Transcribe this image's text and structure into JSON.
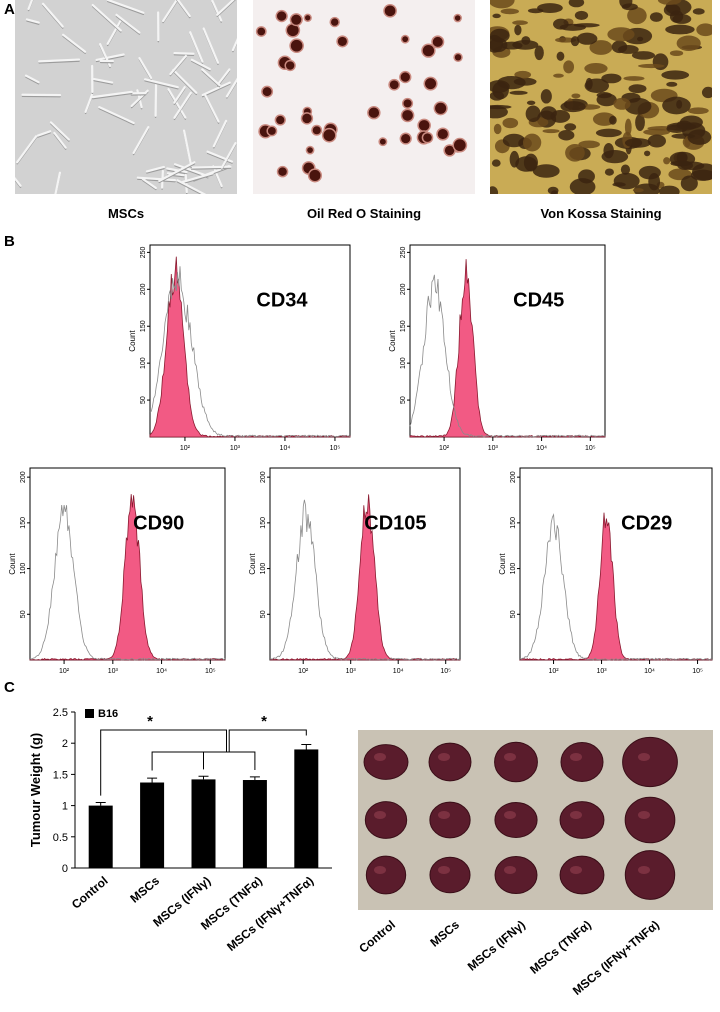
{
  "panel_labels": [
    "A",
    "B",
    "C"
  ],
  "panel_a": {
    "captions": [
      "MSCs",
      "Oil Red O Staining",
      "Von Kossa Staining"
    ]
  },
  "panel_b": {
    "y_axis_label": "Count",
    "log_x": true,
    "plots": [
      {
        "label": "CD34",
        "xlim": [
          20,
          200000
        ],
        "ylim": [
          0,
          260
        ],
        "yticks": [
          50,
          100,
          150,
          200,
          250
        ],
        "xticks": [
          {
            "value": 100,
            "label": "10²"
          },
          {
            "value": 1000,
            "label": "10³"
          },
          {
            "value": 10000,
            "label": "10⁴"
          },
          {
            "value": 100000,
            "label": "10⁵"
          }
        ]
      },
      {
        "label": "CD45",
        "xlim": [
          20,
          200000
        ],
        "ylim": [
          0,
          260
        ],
        "yticks": [
          50,
          100,
          150,
          200,
          250
        ],
        "xticks": [
          {
            "value": 100,
            "label": "10²"
          },
          {
            "value": 1000,
            "label": "10³"
          },
          {
            "value": 10000,
            "label": "10⁴"
          },
          {
            "value": 100000,
            "label": "10⁵"
          }
        ]
      },
      {
        "label": "CD90",
        "xlim": [
          20,
          200000
        ],
        "ylim": [
          0,
          210
        ],
        "yticks": [
          50,
          100,
          150,
          200
        ],
        "xticks": [
          {
            "value": 100,
            "label": "10²"
          },
          {
            "value": 1000,
            "label": "10³"
          },
          {
            "value": 10000,
            "label": "10⁴"
          },
          {
            "value": 100000,
            "label": "10⁵"
          }
        ]
      },
      {
        "label": "CD105",
        "xlim": [
          20,
          200000
        ],
        "ylim": [
          0,
          210
        ],
        "yticks": [
          50,
          100,
          150,
          200
        ],
        "xticks": [
          {
            "value": 100,
            "label": "10²"
          },
          {
            "value": 1000,
            "label": "10³"
          },
          {
            "value": 10000,
            "label": "10⁴"
          },
          {
            "value": 100000,
            "label": "10⁵"
          }
        ]
      },
      {
        "label": "CD29",
        "xlim": [
          20,
          200000
        ],
        "ylim": [
          0,
          210
        ],
        "yticks": [
          50,
          100,
          150,
          200
        ],
        "xticks": [
          {
            "value": 100,
            "label": "10²"
          },
          {
            "value": 1000,
            "label": "10³"
          },
          {
            "value": 10000,
            "label": "10⁴"
          },
          {
            "value": 100000,
            "label": "10⁵"
          }
        ]
      }
    ]
  },
  "chart_data": {
    "type": "bar",
    "y_label": "Tumour Weight (g)",
    "legend": "B16",
    "color": "#000000",
    "categories": [
      "Control",
      "MSCs",
      "MSCs (IFNγ)",
      "MSCs (TNFα)",
      "MSCs (IFNγ+TNFα)"
    ],
    "values": [
      1.0,
      1.37,
      1.42,
      1.41,
      1.9
    ],
    "errors": [
      0.05,
      0.07,
      0.05,
      0.05,
      0.08
    ],
    "ylim": [
      0,
      2.5
    ],
    "yticks": [
      0,
      0.5,
      1,
      1.5,
      2,
      2.5
    ],
    "annotations": [
      "*",
      "*"
    ]
  }
}
